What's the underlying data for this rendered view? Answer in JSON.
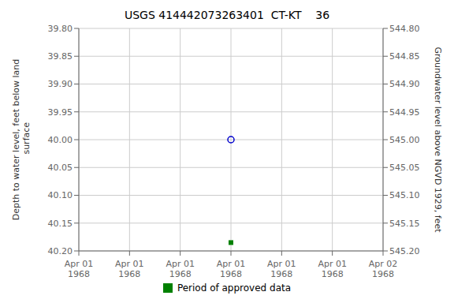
{
  "chart_data": {
    "type": "scatter",
    "title": "USGS 414442073263401  CT-KT    36",
    "ylabel": "Depth to water level, feet below land\n surface",
    "y2label": "Groundwater level above NGVD 1929, feet",
    "categories": [
      "Apr 01\n1968",
      "Apr 01\n1968",
      "Apr 01\n1968",
      "Apr 01\n1968",
      "Apr 01\n1968",
      "Apr 01\n1968",
      "Apr 02\n1968"
    ],
    "series": [
      {
        "color": "#0000cc",
        "marker": "circle_open",
        "values": [
          null,
          null,
          null,
          40.0,
          null,
          null,
          null
        ]
      },
      {
        "name": "Period of approved data",
        "color": "#008000",
        "marker": "square",
        "values": [
          null,
          null,
          null,
          40.185,
          null,
          null,
          null
        ]
      }
    ],
    "ylim": [
      40.2,
      39.8
    ],
    "yticks": [
      {
        "value": 39.8,
        "label": "39.80"
      },
      {
        "value": 39.85,
        "label": "39.85"
      },
      {
        "value": 39.9,
        "label": "39.90"
      },
      {
        "value": 39.95,
        "label": "39.95"
      },
      {
        "value": 40.0,
        "label": "40.00"
      },
      {
        "value": 40.05,
        "label": "40.05"
      },
      {
        "value": 40.1,
        "label": "40.10"
      },
      {
        "value": 40.15,
        "label": "40.15"
      },
      {
        "value": 40.2,
        "label": "40.20"
      }
    ],
    "y2lim": [
      545.2,
      544.8
    ],
    "y2ticks": [
      {
        "value": 545.2,
        "label": "545.20"
      },
      {
        "value": 545.15,
        "label": "545.15"
      },
      {
        "value": 545.1,
        "label": "545.10"
      },
      {
        "value": 545.05,
        "label": "545.05"
      },
      {
        "value": 545.0,
        "label": "545.00"
      },
      {
        "value": 544.95,
        "label": "544.95"
      },
      {
        "value": 544.9,
        "label": "544.90"
      },
      {
        "value": 544.85,
        "label": "544.85"
      },
      {
        "value": 544.8,
        "label": "544.80"
      }
    ],
    "grid": true,
    "legend": "bottom"
  }
}
